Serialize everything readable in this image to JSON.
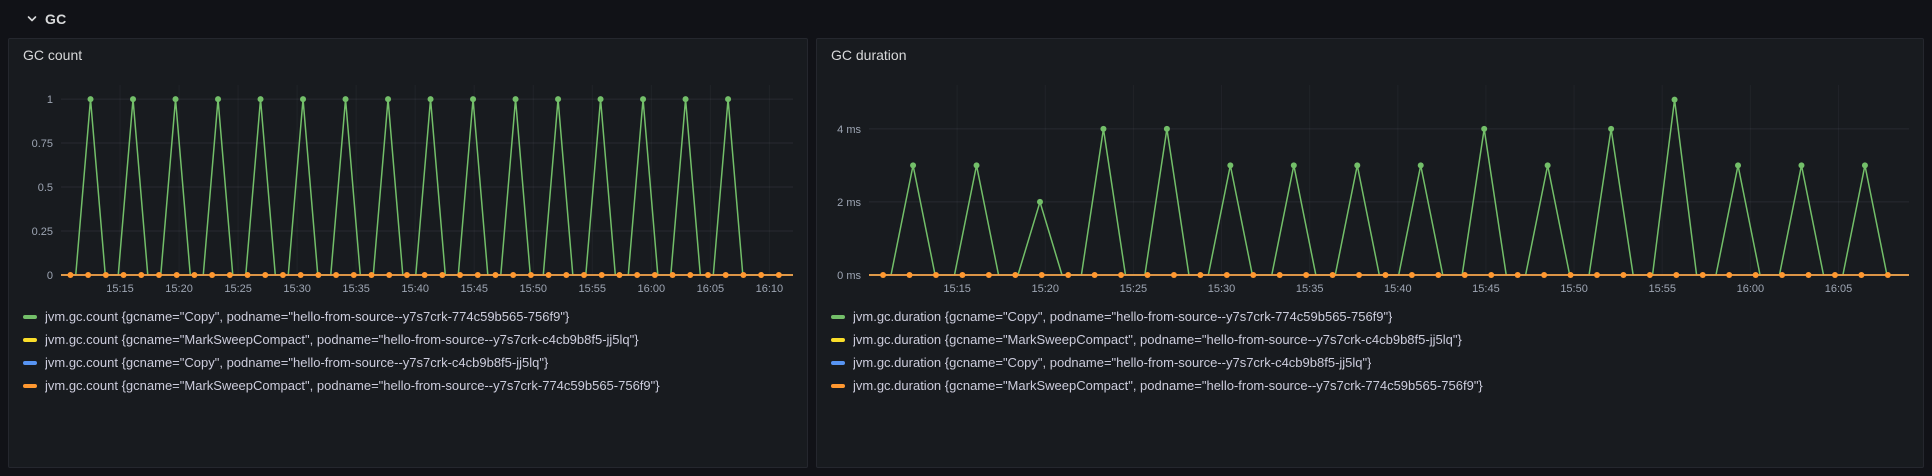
{
  "row_header": {
    "title": "GC"
  },
  "panels": [
    {
      "title": "GC count"
    },
    {
      "title": "GC duration"
    }
  ],
  "colors": {
    "page_bg": "#111217",
    "panel_bg": "#181b1f",
    "panel_border": "#25272e",
    "text": "#d8d9da",
    "tick_text": "#9da5b3",
    "series_green": "#73bf69",
    "series_yellow": "#fade2a",
    "series_blue": "#5794f2",
    "series_orange": "#ff9830"
  },
  "chart_data": [
    {
      "type": "line",
      "title": "GC count",
      "xlabel": "",
      "ylabel": "",
      "grid": true,
      "legend_position": "bottom",
      "x_min": 10,
      "x_max": 72,
      "y_max": 1.08,
      "x_ticks": [
        {
          "m": 15,
          "label": "15:15"
        },
        {
          "m": 20,
          "label": "15:20"
        },
        {
          "m": 25,
          "label": "15:25"
        },
        {
          "m": 30,
          "label": "15:30"
        },
        {
          "m": 35,
          "label": "15:35"
        },
        {
          "m": 40,
          "label": "15:40"
        },
        {
          "m": 45,
          "label": "15:45"
        },
        {
          "m": 50,
          "label": "15:50"
        },
        {
          "m": 55,
          "label": "15:55"
        },
        {
          "m": 60,
          "label": "16:00"
        },
        {
          "m": 65,
          "label": "16:05"
        },
        {
          "m": 70,
          "label": "16:10"
        }
      ],
      "y_ticks": [
        {
          "v": 0,
          "label": "0"
        },
        {
          "v": 0.25,
          "label": "0.25"
        },
        {
          "v": 0.5,
          "label": "0.5"
        },
        {
          "v": 0.75,
          "label": "0.75"
        },
        {
          "v": 1,
          "label": "1"
        }
      ],
      "series": [
        {
          "label": "jvm.gc.count {gcname=\"Copy\", podname=\"hello-from-source--y7s7crk-774c59b565-756f9\"}",
          "color": "#73bf69",
          "style": "spikes",
          "minutes": [
            12.5,
            16.1,
            19.7,
            23.3,
            26.9,
            30.5,
            34.1,
            37.7,
            41.3,
            44.9,
            48.5,
            52.1,
            55.7,
            59.3,
            62.9,
            66.5
          ],
          "values": [
            1,
            1,
            1,
            1,
            1,
            1,
            1,
            1,
            1,
            1,
            1,
            1,
            1,
            1,
            1,
            1
          ]
        },
        {
          "label": "jvm.gc.count {gcname=\"MarkSweepCompact\", podname=\"hello-from-source--y7s7crk-c4cb9b8f5-jj5lq\"}",
          "color": "#fade2a",
          "style": "flat",
          "value": 0,
          "markers": false
        },
        {
          "label": "jvm.gc.count {gcname=\"Copy\", podname=\"hello-from-source--y7s7crk-c4cb9b8f5-jj5lq\"}",
          "color": "#5794f2",
          "style": "flat",
          "value": 0,
          "markers": false
        },
        {
          "label": "jvm.gc.count {gcname=\"MarkSweepCompact\", podname=\"hello-from-source--y7s7crk-774c59b565-756f9\"}",
          "color": "#ff9830",
          "style": "flat",
          "value": 0,
          "markers": true,
          "marker_interval_min": 1.5
        }
      ]
    },
    {
      "type": "line",
      "title": "GC duration",
      "xlabel": "",
      "ylabel": "ms",
      "grid": true,
      "legend_position": "bottom",
      "x_min": 10,
      "x_max": 69,
      "y_max": 5.2,
      "x_ticks": [
        {
          "m": 15,
          "label": "15:15"
        },
        {
          "m": 20,
          "label": "15:20"
        },
        {
          "m": 25,
          "label": "15:25"
        },
        {
          "m": 30,
          "label": "15:30"
        },
        {
          "m": 35,
          "label": "15:35"
        },
        {
          "m": 40,
          "label": "15:40"
        },
        {
          "m": 45,
          "label": "15:45"
        },
        {
          "m": 50,
          "label": "15:50"
        },
        {
          "m": 55,
          "label": "15:55"
        },
        {
          "m": 60,
          "label": "16:00"
        },
        {
          "m": 65,
          "label": "16:05"
        }
      ],
      "y_ticks": [
        {
          "v": 0,
          "label": "0 ms"
        },
        {
          "v": 2,
          "label": "2 ms"
        },
        {
          "v": 4,
          "label": "4 ms"
        }
      ],
      "series": [
        {
          "label": "jvm.gc.duration {gcname=\"Copy\", podname=\"hello-from-source--y7s7crk-774c59b565-756f9\"}",
          "color": "#73bf69",
          "style": "spikes",
          "minutes": [
            12.5,
            16.1,
            19.7,
            23.3,
            26.9,
            30.5,
            34.1,
            37.7,
            41.3,
            44.9,
            48.5,
            52.1,
            55.7,
            59.3,
            62.9,
            66.5
          ],
          "values": [
            3,
            3,
            2,
            4,
            4,
            3,
            3,
            3,
            3,
            4,
            3,
            4,
            4.8,
            3,
            3,
            3
          ]
        },
        {
          "label": "jvm.gc.duration {gcname=\"MarkSweepCompact\", podname=\"hello-from-source--y7s7crk-c4cb9b8f5-jj5lq\"}",
          "color": "#fade2a",
          "style": "flat",
          "value": 0,
          "markers": false
        },
        {
          "label": "jvm.gc.duration {gcname=\"Copy\", podname=\"hello-from-source--y7s7crk-c4cb9b8f5-jj5lq\"}",
          "color": "#5794f2",
          "style": "flat",
          "value": 0,
          "markers": false
        },
        {
          "label": "jvm.gc.duration {gcname=\"MarkSweepCompact\", podname=\"hello-from-source--y7s7crk-774c59b565-756f9\"}",
          "color": "#ff9830",
          "style": "flat",
          "value": 0,
          "markers": true,
          "marker_interval_min": 1.5
        }
      ]
    }
  ]
}
